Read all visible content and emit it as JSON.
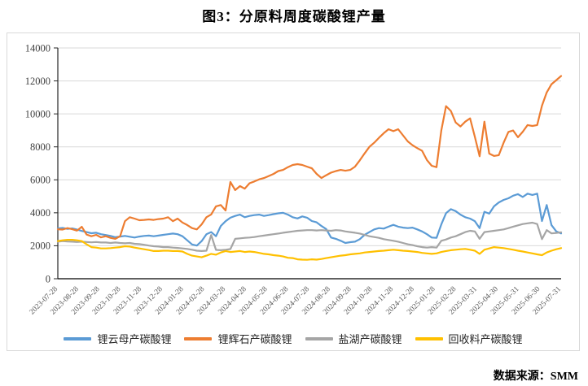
{
  "title": "图3：分原料周度碳酸锂产量",
  "source": "数据来源：SMM",
  "chart_data": {
    "type": "line",
    "title": "图3：分原料周度碳酸锂产量",
    "xlabel": "",
    "ylabel": "",
    "ylim": [
      0,
      14000
    ],
    "ytick_step": 2000,
    "ytick_labels": [
      "0",
      "2000",
      "4000",
      "6000",
      "8000",
      "10000",
      "12000",
      "14000"
    ],
    "grid": true,
    "legend_position": "bottom",
    "axis_color": "#262626",
    "grid_color": "#d9d9d9",
    "xtick_label_color": "#595959",
    "ytick_label_color": "#404040",
    "x_tick_labels": [
      "2023-07-28",
      "2023-08-28",
      "2023-09-28",
      "2023-10-28",
      "2023-11-28",
      "2023-12-28",
      "2024-01-28",
      "2024-02-28",
      "2024-03-28",
      "2024-04-28",
      "2024-05-28",
      "2024-06-28",
      "2024-07-28",
      "2024-08-28",
      "2024-09-28",
      "2024-10-28",
      "2024-11-28",
      "2024-12-28",
      "2025-01-28",
      "2025-02-28",
      "2025-03-31",
      "2025-04-30",
      "2025-05-31",
      "2025-06-30",
      "2025-07-31"
    ],
    "x": [
      "2023-07-28",
      "2023-08-04",
      "2023-08-11",
      "2023-08-18",
      "2023-08-25",
      "2023-09-01",
      "2023-09-08",
      "2023-09-15",
      "2023-09-22",
      "2023-09-29",
      "2023-10-06",
      "2023-10-13",
      "2023-10-20",
      "2023-10-27",
      "2023-11-03",
      "2023-11-10",
      "2023-11-17",
      "2023-11-24",
      "2023-12-01",
      "2023-12-08",
      "2023-12-15",
      "2023-12-22",
      "2023-12-29",
      "2024-01-05",
      "2024-01-12",
      "2024-01-19",
      "2024-01-26",
      "2024-02-02",
      "2024-02-09",
      "2024-02-16",
      "2024-02-23",
      "2024-03-01",
      "2024-03-08",
      "2024-03-15",
      "2024-03-22",
      "2024-03-29",
      "2024-04-05",
      "2024-04-12",
      "2024-04-19",
      "2024-04-26",
      "2024-05-03",
      "2024-05-10",
      "2024-05-17",
      "2024-05-24",
      "2024-05-31",
      "2024-06-07",
      "2024-06-14",
      "2024-06-21",
      "2024-06-28",
      "2024-07-05",
      "2024-07-12",
      "2024-07-19",
      "2024-07-26",
      "2024-08-02",
      "2024-08-09",
      "2024-08-16",
      "2024-08-23",
      "2024-08-30",
      "2024-09-06",
      "2024-09-13",
      "2024-09-20",
      "2024-09-27",
      "2024-10-04",
      "2024-10-11",
      "2024-10-18",
      "2024-10-25",
      "2024-11-01",
      "2024-11-08",
      "2024-11-15",
      "2024-11-22",
      "2024-11-29",
      "2024-12-06",
      "2024-12-13",
      "2024-12-20",
      "2024-12-27",
      "2025-01-03",
      "2025-01-10",
      "2025-01-17",
      "2025-01-24",
      "2025-01-31",
      "2025-02-07",
      "2025-02-14",
      "2025-02-21",
      "2025-02-28",
      "2025-03-07",
      "2025-03-14",
      "2025-03-21",
      "2025-03-28",
      "2025-04-04",
      "2025-04-11",
      "2025-04-18",
      "2025-04-25",
      "2025-05-02",
      "2025-05-09",
      "2025-05-16",
      "2025-05-23",
      "2025-05-30",
      "2025-06-06",
      "2025-06-13",
      "2025-06-20",
      "2025-06-27",
      "2025-07-04",
      "2025-07-11",
      "2025-07-18",
      "2025-07-25",
      "2025-07-31"
    ],
    "series": [
      {
        "name": "锂云母产碳酸锂",
        "color": "#5B9BD5",
        "values": [
          3050,
          3080,
          3020,
          3050,
          2980,
          2900,
          2830,
          2760,
          2790,
          2700,
          2650,
          2600,
          2520,
          2560,
          2600,
          2550,
          2500,
          2560,
          2600,
          2620,
          2580,
          2620,
          2660,
          2700,
          2740,
          2700,
          2580,
          2330,
          2080,
          2010,
          2280,
          2700,
          2830,
          2580,
          3200,
          3490,
          3700,
          3810,
          3890,
          3730,
          3810,
          3860,
          3890,
          3810,
          3860,
          3920,
          3970,
          4000,
          3890,
          3730,
          3660,
          3780,
          3700,
          3500,
          3420,
          3200,
          3010,
          2500,
          2420,
          2300,
          2170,
          2220,
          2250,
          2400,
          2660,
          2830,
          2990,
          3070,
          3040,
          3160,
          3270,
          3160,
          3100,
          3070,
          3100,
          2990,
          2870,
          2700,
          2500,
          2480,
          3300,
          3980,
          4220,
          4100,
          3890,
          3730,
          3650,
          3490,
          3070,
          4060,
          3950,
          4390,
          4630,
          4780,
          4880,
          5040,
          5130,
          4960,
          5160,
          5080,
          5160,
          3500,
          4470,
          3250,
          2870,
          2750
        ]
      },
      {
        "name": "锂辉石产碳酸锂",
        "color": "#ED7D31",
        "values": [
          3000,
          2980,
          3070,
          3000,
          2920,
          3150,
          2680,
          2580,
          2660,
          2510,
          2580,
          2480,
          2420,
          2580,
          3490,
          3730,
          3650,
          3550,
          3570,
          3600,
          3570,
          3620,
          3650,
          3730,
          3490,
          3650,
          3410,
          3260,
          3070,
          2990,
          3300,
          3730,
          3900,
          4390,
          4470,
          4140,
          5870,
          5380,
          5620,
          5460,
          5790,
          5900,
          6030,
          6110,
          6230,
          6360,
          6530,
          6600,
          6770,
          6900,
          6950,
          6900,
          6800,
          6700,
          6360,
          6110,
          6280,
          6440,
          6530,
          6600,
          6550,
          6600,
          6800,
          7180,
          7600,
          8000,
          8250,
          8550,
          8830,
          9070,
          8950,
          9070,
          8700,
          8330,
          8100,
          7920,
          7760,
          7200,
          6850,
          6770,
          9000,
          10470,
          10180,
          9480,
          9240,
          9530,
          9730,
          8600,
          7430,
          9530,
          7590,
          7450,
          7500,
          8250,
          8910,
          8990,
          8580,
          8920,
          9320,
          9270,
          9320,
          10500,
          11300,
          11800,
          12050,
          12300
        ]
      },
      {
        "name": "盐湖产碳酸锂",
        "color": "#A5A5A5",
        "values": [
          2250,
          2280,
          2260,
          2250,
          2230,
          2250,
          2230,
          2210,
          2230,
          2200,
          2200,
          2170,
          2200,
          2170,
          2150,
          2170,
          2120,
          2100,
          2060,
          2010,
          1970,
          1950,
          1920,
          1920,
          1890,
          1870,
          1840,
          1810,
          1760,
          1700,
          1680,
          1700,
          2650,
          1750,
          1730,
          1760,
          1800,
          2420,
          2450,
          2480,
          2500,
          2530,
          2580,
          2620,
          2660,
          2700,
          2740,
          2790,
          2830,
          2870,
          2910,
          2930,
          2950,
          2950,
          2930,
          2950,
          2930,
          2910,
          2950,
          2930,
          2870,
          2830,
          2790,
          2740,
          2660,
          2580,
          2530,
          2480,
          2400,
          2350,
          2300,
          2250,
          2170,
          2090,
          2040,
          1970,
          1920,
          1890,
          1920,
          1890,
          2300,
          2380,
          2500,
          2580,
          2700,
          2830,
          2910,
          2870,
          2420,
          2830,
          2870,
          2910,
          2950,
          2990,
          3070,
          3160,
          3240,
          3320,
          3360,
          3400,
          3320,
          2400,
          2950,
          2750,
          2780,
          2820
        ]
      },
      {
        "name": "回收料产碳酸锂",
        "color": "#FFC000",
        "values": [
          2280,
          2330,
          2360,
          2360,
          2330,
          2280,
          2090,
          1920,
          1890,
          1840,
          1840,
          1860,
          1890,
          1920,
          1970,
          1950,
          1890,
          1840,
          1790,
          1740,
          1680,
          1680,
          1700,
          1700,
          1680,
          1680,
          1650,
          1510,
          1400,
          1350,
          1300,
          1400,
          1510,
          1460,
          1590,
          1680,
          1620,
          1650,
          1680,
          1620,
          1650,
          1620,
          1570,
          1510,
          1480,
          1430,
          1400,
          1350,
          1270,
          1250,
          1180,
          1160,
          1150,
          1180,
          1160,
          1200,
          1250,
          1300,
          1350,
          1400,
          1430,
          1480,
          1510,
          1540,
          1590,
          1620,
          1650,
          1680,
          1700,
          1730,
          1760,
          1730,
          1700,
          1680,
          1650,
          1620,
          1570,
          1540,
          1510,
          1540,
          1620,
          1680,
          1730,
          1760,
          1790,
          1810,
          1760,
          1700,
          1510,
          1760,
          1840,
          1920,
          1890,
          1860,
          1810,
          1760,
          1700,
          1650,
          1590,
          1540,
          1480,
          1430,
          1590,
          1700,
          1790,
          1860
        ]
      }
    ]
  }
}
